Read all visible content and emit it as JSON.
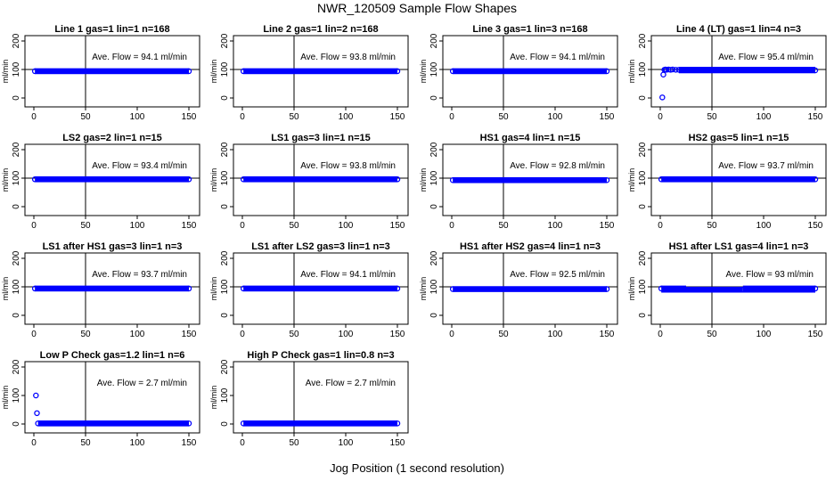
{
  "figure": {
    "title": "NWR_120509  Sample Flow Shapes",
    "xlabel": "Jog Position (1 second resolution)"
  },
  "chart_data": [
    {
      "type": "scatter",
      "title": "Line 1 gas=1 lin=1 n=168",
      "annotation": "Ave. Flow = 94.1  ml/min",
      "ylabel": "ml/min",
      "xlim": [
        0,
        150
      ],
      "ylim": [
        0,
        200
      ],
      "xticks": [
        "0",
        "50",
        "100",
        "150"
      ],
      "yticks": [
        "0",
        "100",
        "200"
      ],
      "vline": 50,
      "hline": 100,
      "series": [
        {
          "x": [
            1,
            150
          ],
          "y": [
            94,
            94
          ]
        }
      ]
    },
    {
      "type": "scatter",
      "title": "Line 2 gas=1 lin=2 n=168",
      "annotation": "Ave. Flow = 93.8  ml/min",
      "ylabel": "ml/min",
      "xlim": [
        0,
        150
      ],
      "ylim": [
        0,
        200
      ],
      "xticks": [
        "0",
        "50",
        "100",
        "150"
      ],
      "yticks": [
        "0",
        "100",
        "200"
      ],
      "vline": 50,
      "hline": 100,
      "series": [
        {
          "x": [
            1,
            150
          ],
          "y": [
            94,
            94
          ]
        }
      ]
    },
    {
      "type": "scatter",
      "title": "Line 3 gas=1 lin=3 n=168",
      "annotation": "Ave. Flow = 94.1  ml/min",
      "ylabel": "ml/min",
      "xlim": [
        0,
        150
      ],
      "ylim": [
        0,
        200
      ],
      "xticks": [
        "0",
        "50",
        "100",
        "150"
      ],
      "yticks": [
        "0",
        "100",
        "200"
      ],
      "vline": 50,
      "hline": 100,
      "series": [
        {
          "x": [
            1,
            150
          ],
          "y": [
            94,
            94
          ]
        }
      ]
    },
    {
      "type": "scatter",
      "title": "Line 4 (LT) gas=1 lin=4 n=3",
      "annotation": "Ave. Flow = 95.4  ml/min",
      "ylabel": "ml/min",
      "xlim": [
        0,
        150
      ],
      "ylim": [
        0,
        200
      ],
      "xticks": [
        "0",
        "50",
        "100",
        "150"
      ],
      "yticks": [
        "0",
        "100",
        "200"
      ],
      "vline": 50,
      "hline": 100,
      "series": [
        {
          "x": [
            2,
            3,
            4,
            5,
            6,
            8,
            10,
            12,
            15,
            18,
            150
          ],
          "y": [
            2,
            82,
            99,
            100,
            99,
            100,
            99,
            100,
            99,
            99,
            97
          ]
        }
      ]
    },
    {
      "type": "scatter",
      "title": "LS2 gas=2 lin=1 n=15",
      "annotation": "Ave. Flow = 93.4  ml/min",
      "ylabel": "ml/min",
      "xlim": [
        0,
        150
      ],
      "ylim": [
        0,
        200
      ],
      "xticks": [
        "0",
        "50",
        "100",
        "150"
      ],
      "yticks": [
        "0",
        "100",
        "200"
      ],
      "vline": 50,
      "hline": 100,
      "series": [
        {
          "x": [
            1,
            150
          ],
          "y": [
            96,
            96
          ]
        }
      ]
    },
    {
      "type": "scatter",
      "title": "LS1 gas=3 lin=1 n=15",
      "annotation": "Ave. Flow = 93.8  ml/min",
      "ylabel": "ml/min",
      "xlim": [
        0,
        150
      ],
      "ylim": [
        0,
        200
      ],
      "xticks": [
        "0",
        "50",
        "100",
        "150"
      ],
      "yticks": [
        "0",
        "100",
        "200"
      ],
      "vline": 50,
      "hline": 100,
      "series": [
        {
          "x": [
            1,
            150
          ],
          "y": [
            96,
            96
          ]
        }
      ]
    },
    {
      "type": "scatter",
      "title": "HS1 gas=4 lin=1 n=15",
      "annotation": "Ave. Flow = 92.8  ml/min",
      "ylabel": "ml/min",
      "xlim": [
        0,
        150
      ],
      "ylim": [
        0,
        200
      ],
      "xticks": [
        "0",
        "50",
        "100",
        "150"
      ],
      "yticks": [
        "0",
        "100",
        "200"
      ],
      "vline": 50,
      "hline": 100,
      "series": [
        {
          "x": [
            1,
            150
          ],
          "y": [
            93,
            93
          ]
        }
      ]
    },
    {
      "type": "scatter",
      "title": "HS2 gas=5 lin=1 n=15",
      "annotation": "Ave. Flow = 93.7  ml/min",
      "ylabel": "ml/min",
      "xlim": [
        0,
        150
      ],
      "ylim": [
        0,
        200
      ],
      "xticks": [
        "0",
        "50",
        "100",
        "150"
      ],
      "yticks": [
        "0",
        "100",
        "200"
      ],
      "vline": 50,
      "hline": 100,
      "series": [
        {
          "x": [
            1,
            150
          ],
          "y": [
            96,
            96
          ]
        }
      ]
    },
    {
      "type": "scatter",
      "title": "LS1 after HS1 gas=3 lin=1 n=3",
      "annotation": "Ave. Flow = 93.7  ml/min",
      "ylabel": "ml/min",
      "xlim": [
        0,
        150
      ],
      "ylim": [
        0,
        200
      ],
      "xticks": [
        "0",
        "50",
        "100",
        "150"
      ],
      "yticks": [
        "0",
        "100",
        "200"
      ],
      "vline": 50,
      "hline": 100,
      "series": [
        {
          "x": [
            1,
            150
          ],
          "y": [
            94,
            94
          ]
        }
      ]
    },
    {
      "type": "scatter",
      "title": "LS1 after LS2 gas=3 lin=1 n=3",
      "annotation": "Ave. Flow = 94.1  ml/min",
      "ylabel": "ml/min",
      "xlim": [
        0,
        150
      ],
      "ylim": [
        0,
        200
      ],
      "xticks": [
        "0",
        "50",
        "100",
        "150"
      ],
      "yticks": [
        "0",
        "100",
        "200"
      ],
      "vline": 50,
      "hline": 100,
      "series": [
        {
          "x": [
            1,
            150
          ],
          "y": [
            94,
            94
          ]
        }
      ]
    },
    {
      "type": "scatter",
      "title": "HS1 after HS2 gas=4 lin=1 n=3",
      "annotation": "Ave. Flow = 92.5  ml/min",
      "ylabel": "ml/min",
      "xlim": [
        0,
        150
      ],
      "ylim": [
        0,
        200
      ],
      "xticks": [
        "0",
        "50",
        "100",
        "150"
      ],
      "yticks": [
        "0",
        "100",
        "200"
      ],
      "vline": 50,
      "hline": 100,
      "series": [
        {
          "x": [
            1,
            150
          ],
          "y": [
            92,
            92
          ]
        }
      ]
    },
    {
      "type": "scatter",
      "title": "HS1 after LS1 gas=4 lin=1 n=3",
      "annotation": "Ave. Flow = 93  ml/min",
      "ylabel": "ml/min",
      "xlim": [
        0,
        150
      ],
      "ylim": [
        0,
        200
      ],
      "xticks": [
        "0",
        "50",
        "100",
        "150"
      ],
      "yticks": [
        "0",
        "100",
        "200"
      ],
      "vline": 50,
      "hline": 100,
      "series": [
        {
          "x": [
            1,
            25,
            80,
            150
          ],
          "y": [
            94,
            90,
            90,
            94
          ]
        }
      ]
    },
    {
      "type": "scatter",
      "title": "Low P Check gas=1.2 lin=1 n=6",
      "annotation": "Ave. Flow =  2.7  ml/min",
      "ylabel": "ml/min",
      "xlim": [
        0,
        150
      ],
      "ylim": [
        0,
        200
      ],
      "xticks": [
        "0",
        "50",
        "100",
        "150"
      ],
      "yticks": [
        "0",
        "100",
        "200"
      ],
      "vline": 50,
      "hline": null,
      "series": [
        {
          "x": [
            2,
            3,
            4,
            150
          ],
          "y": [
            100,
            38,
            2,
            2
          ]
        }
      ]
    },
    {
      "type": "scatter",
      "title": "High P Check gas=1 lin=0.8 n=3",
      "annotation": "Ave. Flow =  2.7  ml/min",
      "ylabel": "ml/min",
      "xlim": [
        0,
        150
      ],
      "ylim": [
        0,
        200
      ],
      "xticks": [
        "0",
        "50",
        "100",
        "150"
      ],
      "yticks": [
        "0",
        "100",
        "200"
      ],
      "vline": 50,
      "hline": null,
      "series": [
        {
          "x": [
            1,
            150
          ],
          "y": [
            2,
            2
          ]
        }
      ]
    }
  ]
}
